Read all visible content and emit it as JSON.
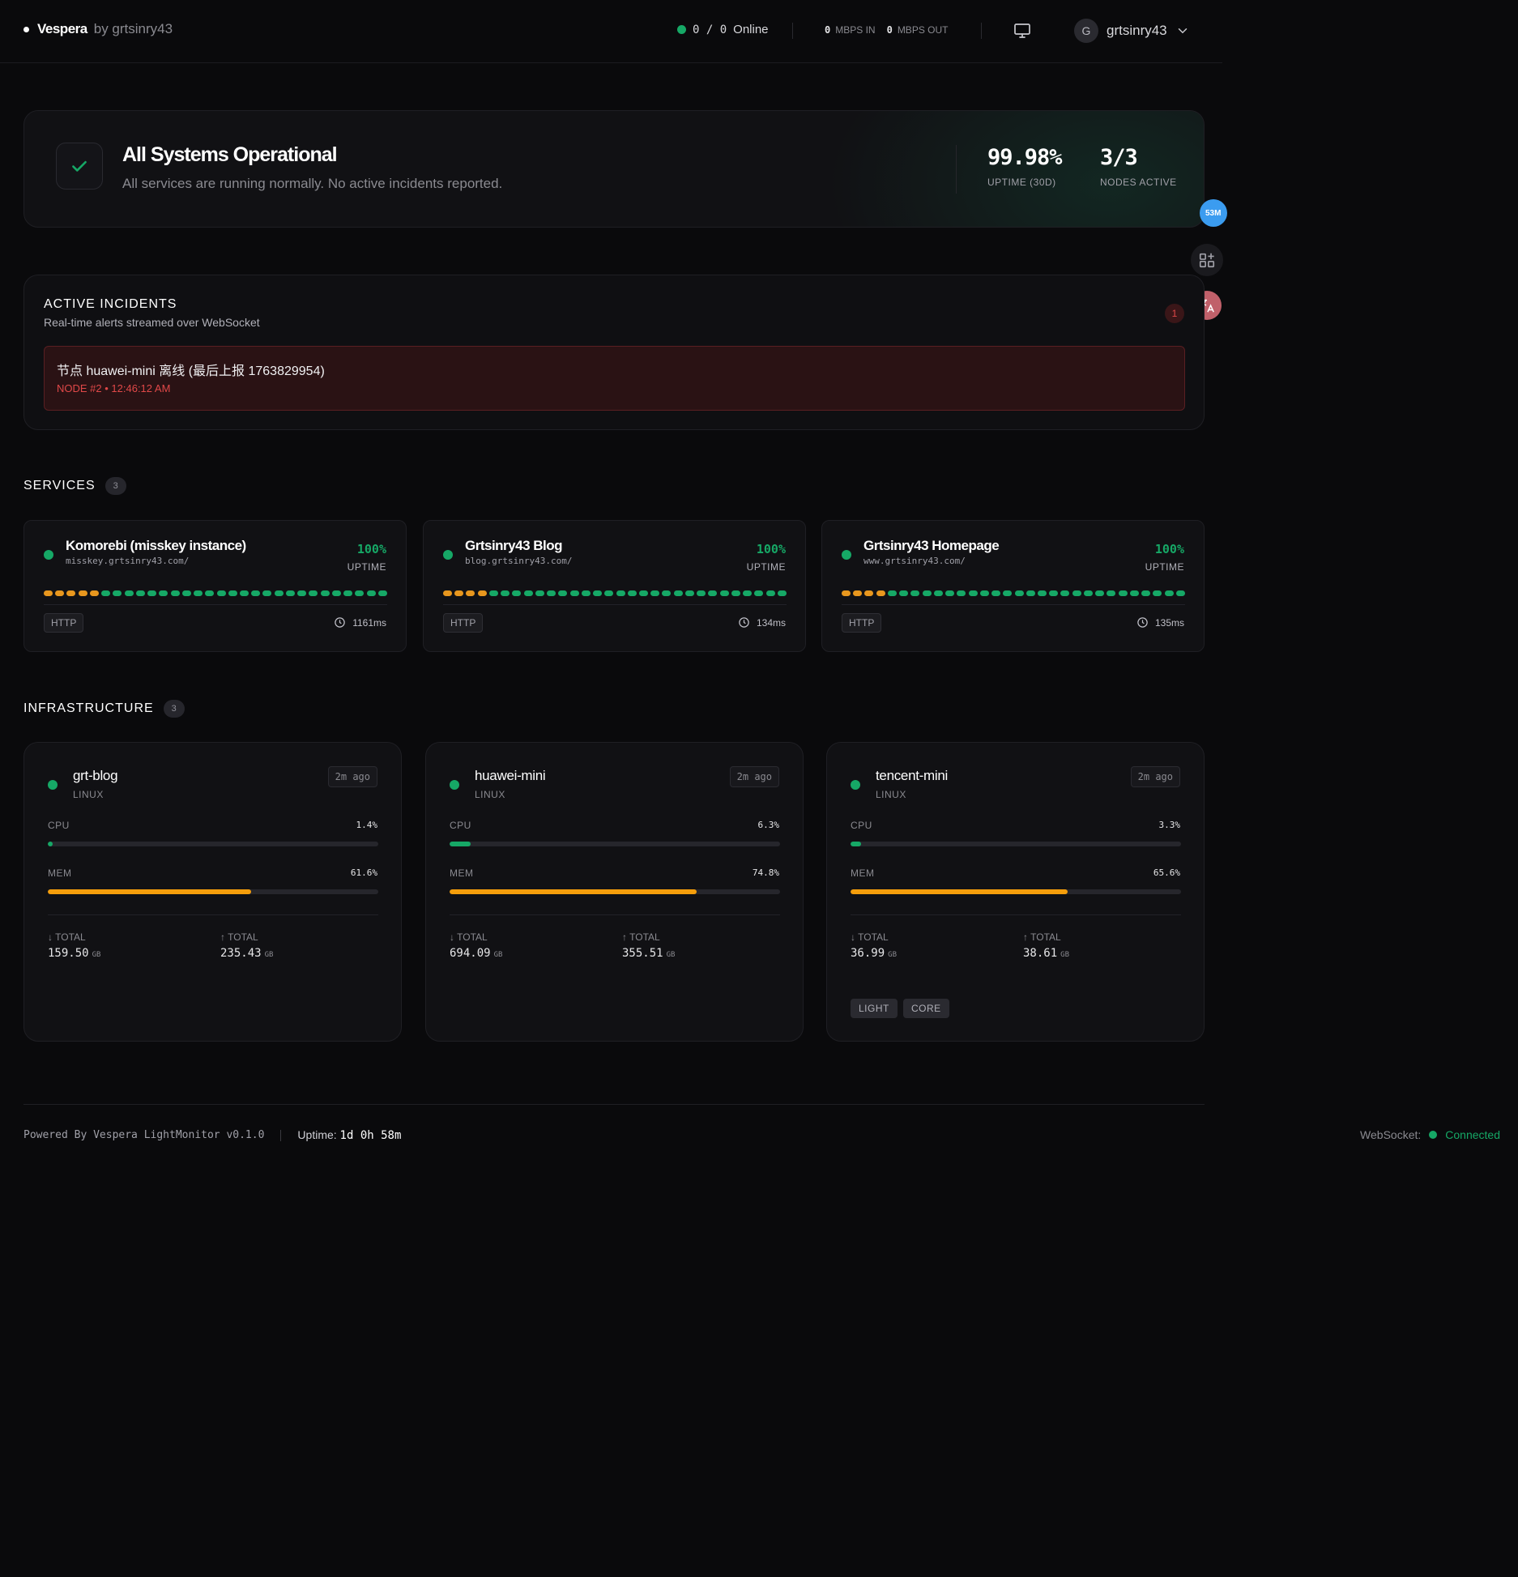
{
  "header": {
    "brand": "Vespera",
    "by": "by grtsinry43",
    "online_count": "0 / 0",
    "online_label": "Online",
    "in_value": "0",
    "in_label": "MBPS IN",
    "out_value": "0",
    "out_label": "MBPS OUT",
    "avatar_letter": "G",
    "username": "grtsinry43"
  },
  "status": {
    "title": "All Systems Operational",
    "subtitle": "All services are running normally. No active incidents reported.",
    "uptime_value": "99.98%",
    "uptime_label": "UPTIME (30D)",
    "nodes_value": "3/3",
    "nodes_label": "NODES ACTIVE"
  },
  "side": {
    "speed_badge": "53M"
  },
  "incidents": {
    "title": "ACTIVE INCIDENTS",
    "subtitle": "Real-time alerts streamed over WebSocket",
    "count": "1",
    "items": [
      {
        "text": "节点 huawei-mini 离线 (最后上报 1763829954)",
        "meta": "NODE #2 • 12:46:12 AM"
      }
    ]
  },
  "services": {
    "title": "SERVICES",
    "count": "3",
    "uptime_label": "UPTIME",
    "items": [
      {
        "name": "Komorebi (misskey instance)",
        "url": "misskey.grtsinry43.com/",
        "uptime": "100%",
        "protocol": "HTTP",
        "latency": "1161ms",
        "beats_orange": 5,
        "beats_total": 30
      },
      {
        "name": "Grtsinry43 Blog",
        "url": "blog.grtsinry43.com/",
        "uptime": "100%",
        "protocol": "HTTP",
        "latency": "134ms",
        "beats_orange": 4,
        "beats_total": 30
      },
      {
        "name": "Grtsinry43 Homepage",
        "url": "www.grtsinry43.com/",
        "uptime": "100%",
        "protocol": "HTTP",
        "latency": "135ms",
        "beats_orange": 4,
        "beats_total": 30
      }
    ]
  },
  "infrastructure": {
    "title": "INFRASTRUCTURE",
    "count": "3",
    "cpu_label": "CPU",
    "mem_label": "MEM",
    "down_label": "↓ TOTAL",
    "up_label": "↑ TOTAL",
    "unit": "GB",
    "nodes": [
      {
        "name": "grt-blog",
        "os": "LINUX",
        "ago": "2m ago",
        "cpu": "1.4%",
        "cpu_frac": 0.014,
        "mem": "61.6%",
        "mem_frac": 0.616,
        "down": "159.50",
        "up": "235.43",
        "tags": []
      },
      {
        "name": "huawei-mini",
        "os": "LINUX",
        "ago": "2m ago",
        "cpu": "6.3%",
        "cpu_frac": 0.063,
        "mem": "74.8%",
        "mem_frac": 0.748,
        "down": "694.09",
        "up": "355.51",
        "tags": []
      },
      {
        "name": "tencent-mini",
        "os": "LINUX",
        "ago": "2m ago",
        "cpu": "3.3%",
        "cpu_frac": 0.033,
        "mem": "65.6%",
        "mem_frac": 0.656,
        "down": "36.99",
        "up": "38.61",
        "tags": [
          "LIGHT",
          "CORE"
        ]
      }
    ]
  },
  "footer": {
    "powered": "Powered By Vespera LightMonitor v0.1.0",
    "uptime_label": "Uptime:",
    "uptime_value": "1d 0h 58m",
    "ws_label": "WebSocket:",
    "ws_status": "Connected"
  },
  "colors": {
    "ok": "#16a866",
    "warn": "#e8971e",
    "mem": "#f59e0b",
    "danger": "#e04848"
  }
}
